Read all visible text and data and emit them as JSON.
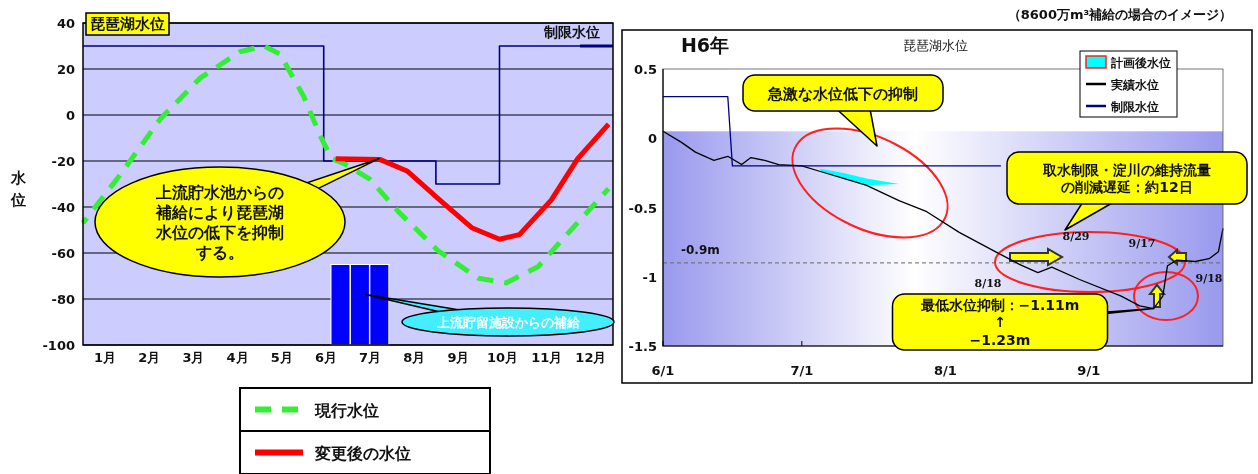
{
  "chart_data": [
    {
      "type": "line",
      "title": "琵琶湖水位",
      "ylabel": "水位",
      "xlim": [
        0,
        12
      ],
      "ylim": [
        -100,
        40
      ],
      "yticks": [
        -100,
        -80,
        -60,
        -40,
        -20,
        0,
        20,
        40
      ],
      "xticks": [
        {
          "value": 0.5,
          "label": "1月"
        },
        {
          "value": 1.5,
          "label": "2月"
        },
        {
          "value": 2.5,
          "label": "3月"
        },
        {
          "value": 3.5,
          "label": "4月"
        },
        {
          "value": 4.5,
          "label": "5月"
        },
        {
          "value": 5.5,
          "label": "6月"
        },
        {
          "value": 6.5,
          "label": "7月"
        },
        {
          "value": 7.5,
          "label": "8月"
        },
        {
          "value": 8.5,
          "label": "9月"
        },
        {
          "value": 9.5,
          "label": "10月"
        },
        {
          "value": 10.5,
          "label": "11月"
        },
        {
          "value": 11.5,
          "label": "12月"
        }
      ],
      "grid": "y",
      "legend": "bottom",
      "marker": "none",
      "series": [
        {
          "name": "制限水位",
          "type": "step",
          "color": "#000080",
          "x": [
            0,
            5.45,
            7.99,
            9.43,
            12
          ],
          "values": [
            30,
            -20,
            -30,
            30,
            30
          ]
        },
        {
          "type": "bar",
          "color": "#0000ff",
          "x": [
            5.83,
            6.27,
            6.71
          ],
          "base": [
            -100,
            -100,
            -100
          ],
          "values": [
            35,
            35,
            35
          ]
        },
        {
          "name": "現行水位",
          "color": "#33ee33",
          "line_style": "dashed",
          "x": [
            0,
            0.84,
            1.74,
            2.65,
            3.55,
            4.1,
            4.46,
            5.0,
            5.37,
            5.63,
            5.9,
            6.5,
            7.14,
            8.04,
            8.95,
            9.58,
            10.3,
            11.0,
            11.9
          ],
          "values": [
            -47,
            -26,
            -2,
            16,
            27.5,
            30,
            26.5,
            8,
            -9,
            -19,
            -21,
            -28,
            -42,
            -59,
            -71,
            -73,
            -66,
            -51,
            -32
          ]
        },
        {
          "name": "変更後の水位",
          "color": "#ff0000",
          "x": [
            5.72,
            6.72,
            7.35,
            8.08,
            8.8,
            9.43,
            9.88,
            10.6,
            11.2,
            11.9
          ],
          "values": [
            -19,
            -19.3,
            -24.5,
            -37,
            -49,
            -54,
            -52,
            -37,
            -19,
            -4
          ]
        }
      ],
      "annotations": [
        {
          "text": "上流貯水池からの補給により琵琶湖水位の低下を抑制する。",
          "x": 6.7,
          "y": -19
        },
        {
          "text": "上流貯留施設からの補給",
          "x": 6.4,
          "y": -78
        }
      ]
    },
    {
      "type": "line",
      "title": "琵琶湖水位",
      "subtitle": "H6年",
      "xlim": [
        "--06-01",
        "--09-30"
      ],
      "ylim": [
        -1.5,
        0.5
      ],
      "yticks": [
        -1.5,
        -1,
        -0.5,
        0,
        0.5
      ],
      "xticks": [
        {
          "value": "--06-01",
          "label": "6/1"
        },
        {
          "value": "--07-01",
          "label": "7/1"
        },
        {
          "value": "--08-01",
          "label": "8/1"
        },
        {
          "value": "--09-01",
          "label": "9/1"
        }
      ],
      "legend": "top right",
      "marker": "none",
      "bands": [
        {
          "axis": "y",
          "from": -1.5,
          "to": 0.05,
          "color": "#9999ee"
        }
      ],
      "ref_lines": [
        {
          "axis": "y",
          "value": -0.9,
          "label": "-0.9m",
          "color": "#666666",
          "line_style": "dashed"
        }
      ],
      "series": [
        {
          "name": "計画後水位",
          "type": "area",
          "color": "#00ffff",
          "x": [
            "--07-05",
            "--07-10",
            "--07-15",
            "--07-22"
          ],
          "values": [
            -0.22,
            -0.25,
            -0.29,
            -0.33
          ]
        },
        {
          "name": "実績水位",
          "color": "#000000",
          "x": [
            "--06-01",
            "--06-05",
            "--06-08",
            "--06-12",
            "--06-15",
            "--06-18",
            "--06-20",
            "--06-23",
            "--06-26",
            "--07-01",
            "--07-05",
            "--07-10",
            "--07-15",
            "--07-22",
            "--07-28",
            "--08-04",
            "--08-13",
            "--08-17",
            "--08-21",
            "--08-24",
            "--08-30",
            "--09-08",
            "--09-12",
            "--09-15",
            "--09-17",
            "--09-18",
            "--09-20",
            "--09-24",
            "--09-27",
            "--09-29",
            "--09-30"
          ],
          "values": [
            0.05,
            -0.03,
            -0.1,
            -0.16,
            -0.13,
            -0.19,
            -0.14,
            -0.16,
            -0.19,
            -0.2,
            -0.24,
            -0.29,
            -0.34,
            -0.45,
            -0.53,
            -0.68,
            -0.84,
            -0.91,
            -0.97,
            -0.93,
            -1.02,
            -1.14,
            -1.21,
            -1.23,
            -1.14,
            -0.92,
            -0.88,
            -0.89,
            -0.87,
            -0.82,
            -0.65
          ]
        },
        {
          "name": "制限水位",
          "color": "#000080",
          "x": [
            "--06-01",
            "--06-15",
            "--06-16",
            "--08-13"
          ],
          "values": [
            0.3,
            0.3,
            -0.2,
            -0.2
          ]
        }
      ],
      "annotations": [
        "（8600万m³補給の場合のイメージ）",
        "急激な水位低下の抑制",
        "取水制限・淀川の維持流量の削減遅延：約12日",
        {
          "text": "最低水位抑制：−1.11m ↑ −1.23m",
          "x": "--09-15",
          "y": -1.23
        },
        "8/18",
        "8/29",
        "9/17",
        "9/18"
      ]
    }
  ]
}
